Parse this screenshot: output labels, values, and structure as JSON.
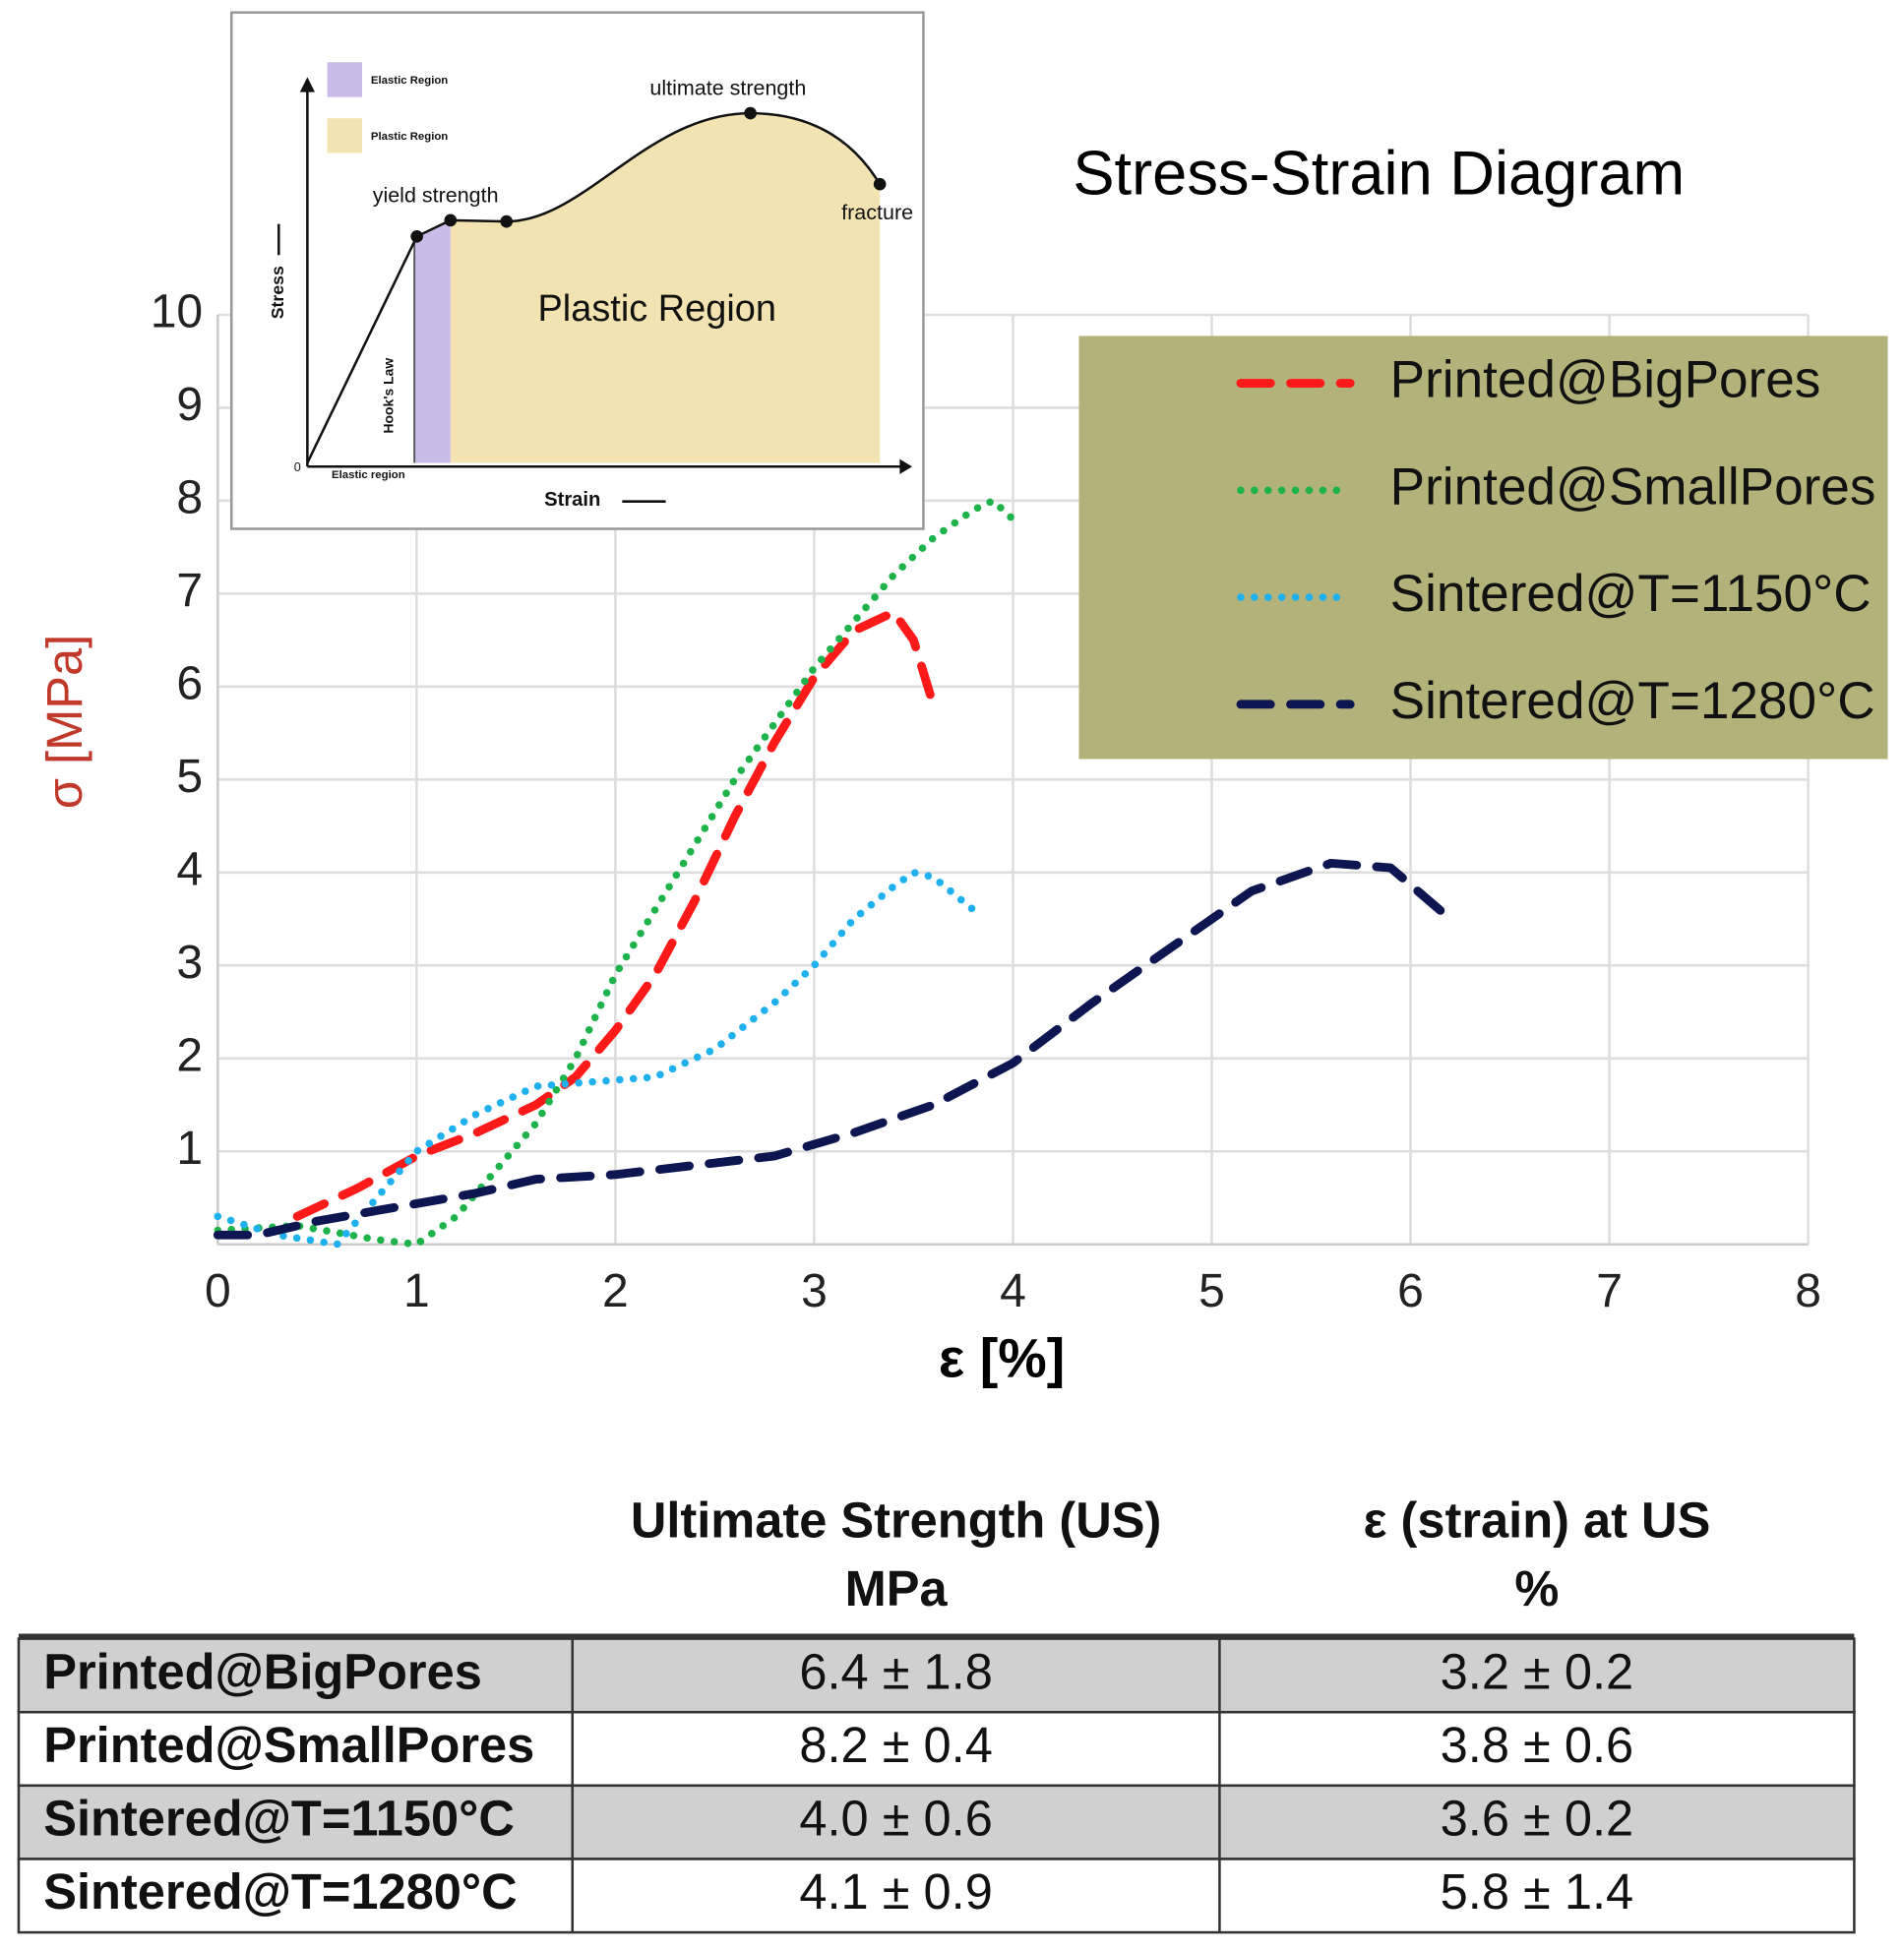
{
  "chart_data": {
    "type": "line",
    "title": "Stress-Strain Diagram",
    "xlabel": "ε [%]",
    "ylabel": "σ [MPa]",
    "xlim": [
      0,
      8
    ],
    "xticks": [
      0,
      1,
      2,
      3,
      4,
      5,
      6,
      7,
      8
    ],
    "ylim": [
      0,
      10
    ],
    "yticks": [
      1,
      2,
      3,
      4,
      5,
      6,
      7,
      8,
      9,
      10
    ],
    "grid": true,
    "legend": "upper right",
    "legend_color": "#b3b27a",
    "series": [
      {
        "name": "Printed@BigPores",
        "color": "#ff1a1a",
        "style": "dashed",
        "x": [
          0.4,
          0.7,
          1.0,
          1.3,
          1.6,
          1.8,
          2.0,
          2.2,
          2.4,
          2.6,
          2.8,
          3.0,
          3.2,
          3.4,
          3.5,
          3.6
        ],
        "values": [
          0.3,
          0.6,
          0.95,
          1.2,
          1.5,
          1.8,
          2.3,
          2.9,
          3.7,
          4.6,
          5.4,
          6.1,
          6.6,
          6.8,
          6.5,
          5.8
        ]
      },
      {
        "name": "Printed@SmallPores",
        "color": "#1db34a",
        "style": "dotted",
        "x": [
          0,
          0.4,
          0.8,
          1.0,
          1.2,
          1.4,
          1.6,
          1.8,
          2.0,
          2.2,
          2.4,
          2.6,
          2.8,
          3.0,
          3.2,
          3.4,
          3.6,
          3.8,
          3.9,
          4.0
        ],
        "values": [
          0.15,
          0.2,
          0.05,
          0.0,
          0.3,
          0.8,
          1.3,
          2.0,
          2.9,
          3.6,
          4.3,
          5.0,
          5.6,
          6.2,
          6.7,
          7.2,
          7.6,
          7.9,
          8.0,
          7.8
        ]
      },
      {
        "name": "Sintered@T=1150°C",
        "color": "#1eb0ef",
        "style": "dotted",
        "x": [
          0,
          0.3,
          0.6,
          0.8,
          1.0,
          1.3,
          1.6,
          1.9,
          2.2,
          2.5,
          2.8,
          3.0,
          3.2,
          3.4,
          3.5,
          3.6,
          3.8
        ],
        "values": [
          0.3,
          0.1,
          0.0,
          0.5,
          1.0,
          1.4,
          1.7,
          1.75,
          1.8,
          2.1,
          2.6,
          3.0,
          3.5,
          3.85,
          4.0,
          3.95,
          3.6
        ]
      },
      {
        "name": "Sintered@T=1280°C",
        "color": "#0d1650",
        "style": "dashed",
        "x": [
          0,
          0.2,
          0.5,
          0.9,
          1.3,
          1.6,
          2.0,
          2.4,
          2.8,
          3.2,
          3.6,
          4.0,
          4.4,
          4.8,
          5.2,
          5.6,
          5.9,
          6.2
        ],
        "values": [
          0.1,
          0.1,
          0.25,
          0.4,
          0.55,
          0.7,
          0.75,
          0.85,
          0.95,
          1.2,
          1.5,
          1.95,
          2.6,
          3.2,
          3.8,
          4.1,
          4.05,
          3.5
        ]
      }
    ]
  },
  "inset": {
    "legend": [
      "Elastic Region",
      "Plastic Region"
    ],
    "ultimate": "ultimate strength",
    "yield": "yield strength",
    "fracture": "fracture",
    "region": "Plastic Region",
    "hooke": "Hook's Law",
    "elastic": "Elastic region",
    "origin": "0",
    "ylabel": "Stress",
    "xlabel": "Strain"
  },
  "table": {
    "columns": [
      [
        "Ultimate Strength (US)",
        "MPa"
      ],
      [
        "ε (strain) at US",
        "%"
      ]
    ],
    "rows": [
      [
        "Printed@BigPores",
        "6.4 ± 1.8",
        "3.2 ± 0.2"
      ],
      [
        "Printed@SmallPores",
        "8.2 ± 0.4",
        "3.8 ± 0.6"
      ],
      [
        "Sintered@T=1150°C",
        "4.0 ± 0.6",
        "3.6 ± 0.2"
      ],
      [
        "Sintered@T=1280°C",
        "4.1 ± 0.9",
        "5.8 ± 1.4"
      ]
    ]
  }
}
